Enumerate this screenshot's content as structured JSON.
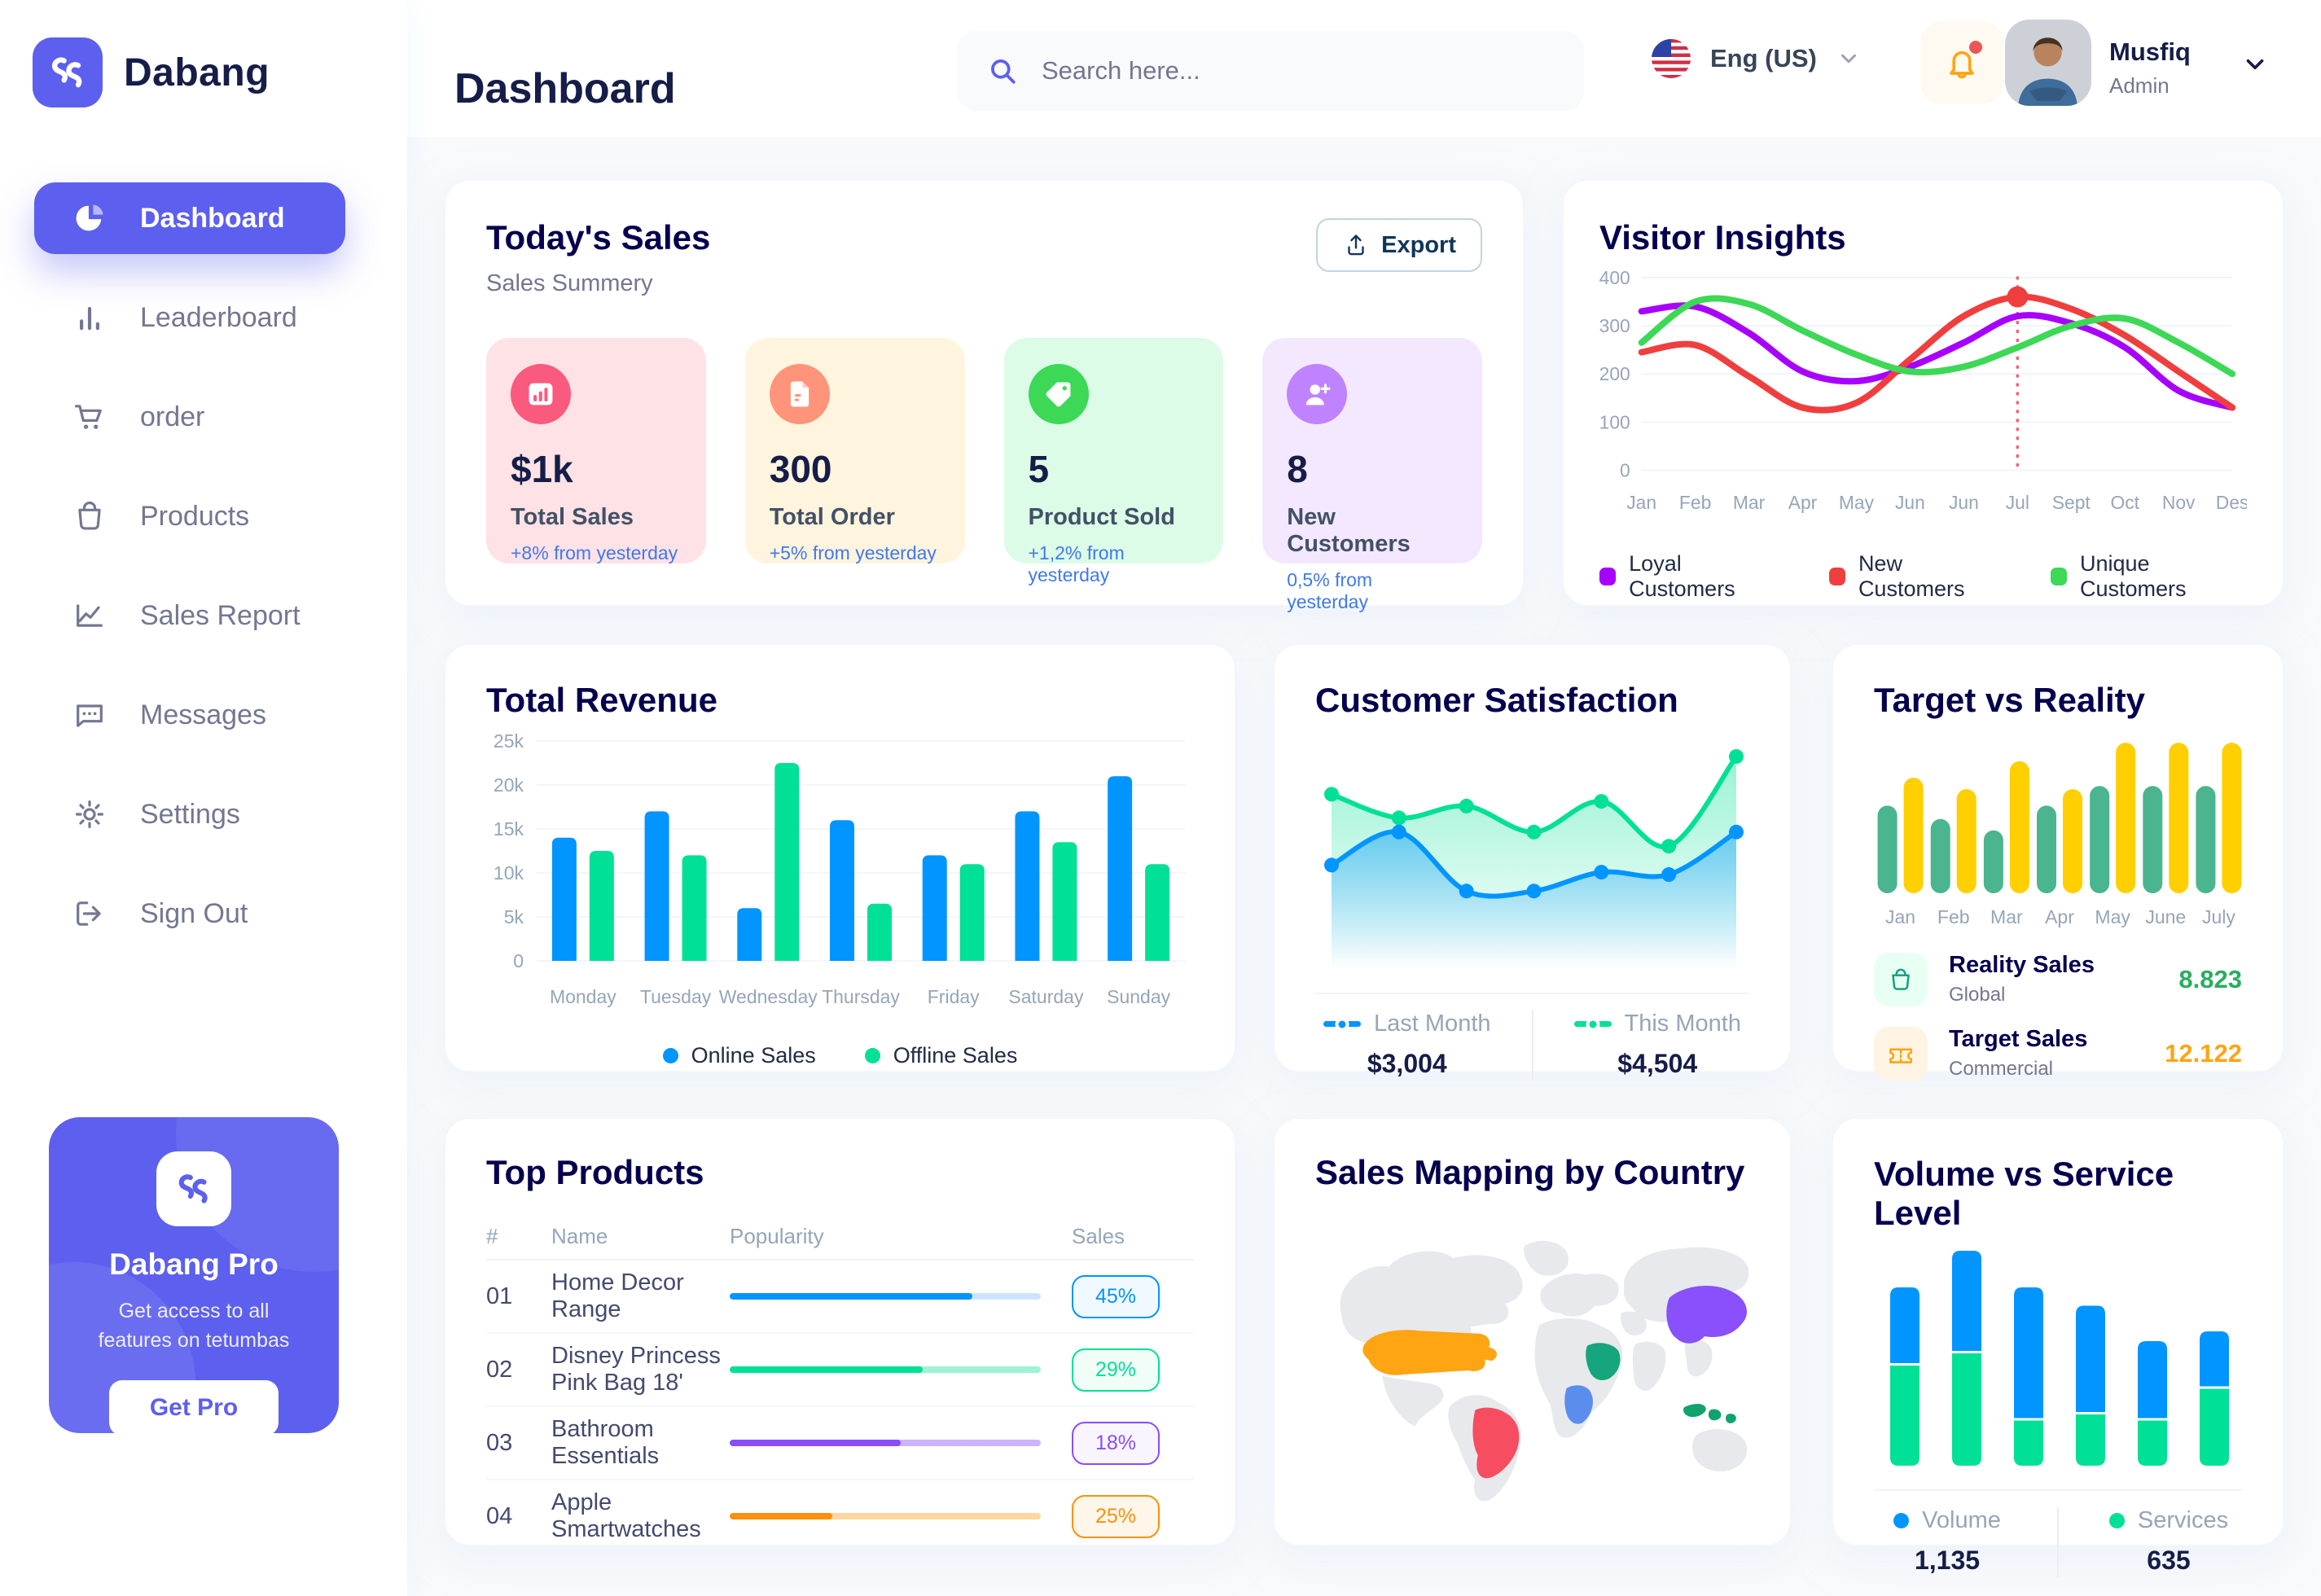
{
  "sidebar": {
    "brand": "Dabang",
    "items": [
      {
        "label": "Dashboard",
        "icon": "dashboard",
        "active": true
      },
      {
        "label": "Leaderboard",
        "icon": "leaderboard",
        "active": false
      },
      {
        "label": "order",
        "icon": "cart",
        "active": false
      },
      {
        "label": "Products",
        "icon": "bag",
        "active": false
      },
      {
        "label": "Sales Report",
        "icon": "chart-line",
        "active": false
      },
      {
        "label": "Messages",
        "icon": "message",
        "active": false
      },
      {
        "label": "Settings",
        "icon": "gear",
        "active": false
      },
      {
        "label": "Sign Out",
        "icon": "signout",
        "active": false
      }
    ],
    "promo": {
      "title": "Dabang Pro",
      "desc": "Get access to all features on tetumbas",
      "cta": "Get Pro"
    }
  },
  "header": {
    "title": "Dashboard",
    "search_placeholder": "Search here...",
    "language": "Eng (US)",
    "user": {
      "name": "Musfiq",
      "role": "Admin"
    }
  },
  "today": {
    "title": "Today's Sales",
    "subtitle": "Sales Summery",
    "export_label": "Export",
    "cards": [
      {
        "value": "$1k",
        "label": "Total Sales",
        "delta": "+8% from yesterday",
        "bg": "#FFE2E5",
        "accent": "#FA5A7D",
        "icon": "bar-stats"
      },
      {
        "value": "300",
        "label": "Total Order",
        "delta": "+5% from yesterday",
        "bg": "#FFF4DE",
        "accent": "#FF947A",
        "icon": "file"
      },
      {
        "value": "5",
        "label": "Product Sold",
        "delta": "+1,2% from yesterday",
        "bg": "#DCFCE7",
        "accent": "#3CD856",
        "icon": "tag"
      },
      {
        "value": "8",
        "label": "New Customers",
        "delta": "0,5% from yesterday",
        "bg": "#F3E8FF",
        "accent": "#BF83FF",
        "icon": "user-plus"
      }
    ]
  },
  "chart_data": [
    {
      "id": "visitor_insights",
      "type": "line",
      "title": "Visitor Insights",
      "x": [
        "Jan",
        "Feb",
        "Mar",
        "Apr",
        "May",
        "Jun",
        "Jun",
        "Jul",
        "Sept",
        "Oct",
        "Nov",
        "Des"
      ],
      "ylim": [
        0,
        400
      ],
      "yticks": [
        0,
        100,
        200,
        300,
        400
      ],
      "grid": true,
      "legend_position": "bottom",
      "series": [
        {
          "name": "Loyal Customers",
          "color": "#A700FF",
          "values": [
            330,
            340,
            285,
            205,
            185,
            215,
            265,
            320,
            305,
            255,
            165,
            130
          ]
        },
        {
          "name": "New Customers",
          "color": "#F03E3E",
          "values": [
            245,
            260,
            195,
            130,
            140,
            230,
            320,
            360,
            335,
            280,
            205,
            130
          ]
        },
        {
          "name": "Unique Customers",
          "color": "#3CD856",
          "values": [
            265,
            350,
            345,
            290,
            240,
            205,
            215,
            255,
            300,
            315,
            265,
            200
          ]
        }
      ],
      "marker": {
        "series": 1,
        "index": 7,
        "line_color": "#F64E60"
      }
    },
    {
      "id": "total_revenue",
      "type": "bar",
      "title": "Total Revenue",
      "categories": [
        "Monday",
        "Tuesday",
        "Wednesday",
        "Thursday",
        "Friday",
        "Saturday",
        "Sunday"
      ],
      "ylim": [
        0,
        25000
      ],
      "yticks": [
        "0",
        "5k",
        "10k",
        "15k",
        "20k",
        "25k"
      ],
      "ytick_vals": [
        0,
        5000,
        10000,
        15000,
        20000,
        25000
      ],
      "grid": true,
      "legend_position": "bottom",
      "series": [
        {
          "name": "Online Sales",
          "color": "#0095FF",
          "values": [
            14000,
            17000,
            6000,
            16000,
            12000,
            17000,
            21000
          ]
        },
        {
          "name": "Offline Sales",
          "color": "#00E096",
          "values": [
            12500,
            12000,
            22500,
            6500,
            11000,
            13500,
            11000
          ]
        }
      ]
    },
    {
      "id": "customer_satisfaction",
      "type": "area",
      "title": "Customer Satisfaction",
      "ylim": [
        0,
        5
      ],
      "grid": false,
      "legend_position": "bottom",
      "series": [
        {
          "name": "Last Month",
          "total": "$3,004",
          "color": "#0095FF",
          "values": [
            2.2,
            2.9,
            1.65,
            1.65,
            2.05,
            2.0,
            2.9
          ]
        },
        {
          "name": "This Month",
          "total": "$4,504",
          "color": "#00E096",
          "values": [
            3.7,
            3.2,
            3.45,
            2.9,
            3.55,
            2.6,
            4.5
          ]
        }
      ]
    },
    {
      "id": "target_vs_reality",
      "type": "bar",
      "title": "Target vs Reality",
      "categories": [
        "Jan",
        "Feb",
        "Mar",
        "Apr",
        "May",
        "June",
        "July"
      ],
      "ylim": [
        0,
        15
      ],
      "grid": false,
      "legend_position": "bottom",
      "series": [
        {
          "name": "Reality Sales",
          "color": "#4AB58E",
          "values": [
            8.5,
            7.2,
            6.1,
            8.5,
            10.4,
            10.4,
            10.4
          ]
        },
        {
          "name": "Target Sales",
          "color": "#FFCF00",
          "values": [
            11.2,
            10.1,
            12.8,
            10.1,
            14.6,
            14.6,
            14.6
          ]
        }
      ],
      "legend_rows": [
        {
          "title": "Reality Sales",
          "sub": "Global",
          "value": "8.823",
          "value_color": "#27AE60",
          "tile": "#E8FFF3",
          "icon": "bag-green"
        },
        {
          "title": "Target Sales",
          "sub": "Commercial",
          "value": "12.122",
          "value_color": "#FFA412",
          "tile": "#FFF4E4",
          "icon": "ticket"
        }
      ]
    },
    {
      "id": "top_products",
      "type": "table",
      "title": "Top Products",
      "headers": [
        "#",
        "Name",
        "Popularity",
        "Sales"
      ],
      "rows": [
        {
          "num": "01",
          "name": "Home Decor Range",
          "popularity": 78,
          "sales": "45%",
          "color": "#0095FF",
          "track": "#CDE4FF",
          "badge_bg": "#F0F9FF"
        },
        {
          "num": "02",
          "name": "Disney Princess Pink Bag 18'",
          "popularity": 62,
          "sales": "29%",
          "color": "#00E096",
          "track": "#9FF3D4",
          "badge_bg": "#F1FDF7"
        },
        {
          "num": "03",
          "name": "Bathroom Essentials",
          "popularity": 55,
          "sales": "18%",
          "color": "#884DFF",
          "track": "#CDB2FF",
          "badge_bg": "#F9F5FF"
        },
        {
          "num": "04",
          "name": "Apple Smartwatches",
          "popularity": 33,
          "sales": "25%",
          "color": "#FF8F0D",
          "track": "#FFD79F",
          "badge_bg": "#FFF6EA"
        }
      ]
    },
    {
      "id": "volume_vs_service",
      "type": "stacked-bar",
      "title": "Volume vs Service Level",
      "legend_position": "bottom",
      "series": [
        {
          "name": "Volume",
          "total": "1,135",
          "color": "#0095FF",
          "values": [
            3.1,
            4.1,
            5.35,
            4.35,
            3.15,
            2.25
          ]
        },
        {
          "name": "Services",
          "total": "635",
          "color": "#00E096",
          "values": [
            4.1,
            4.6,
            1.85,
            2.1,
            1.85,
            3.15
          ]
        }
      ]
    },
    {
      "id": "sales_map",
      "type": "map",
      "title": "Sales Mapping by Country",
      "countries": [
        {
          "name": "United States",
          "color": "#FFA412"
        },
        {
          "name": "Brazil",
          "color": "#F64E60"
        },
        {
          "name": "Saudi Arabia",
          "color": "#16A57C"
        },
        {
          "name": "DR Congo",
          "color": "#5B8DEF"
        },
        {
          "name": "China",
          "color": "#8950FC"
        },
        {
          "name": "Indonesia",
          "color": "#10A36B"
        }
      ]
    }
  ]
}
